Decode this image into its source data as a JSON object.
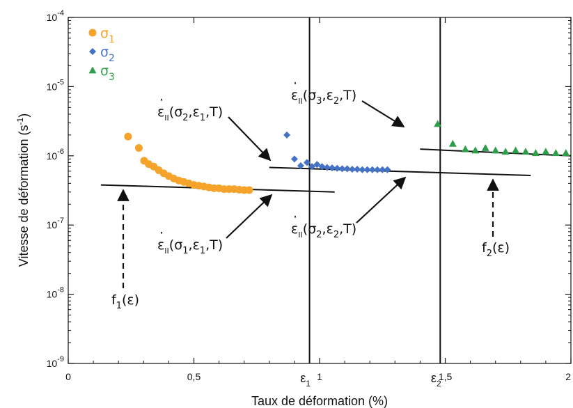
{
  "chart_data": {
    "type": "scatter",
    "xlabel": "Taux de déformation (%)",
    "ylabel": "Vitesse de déformation (s",
    "ylabel_sup": "-1",
    "ylabel_end": ")",
    "xlim": [
      0,
      2
    ],
    "ylim": [
      1e-09,
      0.0001
    ],
    "yscale": "log",
    "x_ticks": [
      {
        "value": 0,
        "label": "0"
      },
      {
        "value": 0.5,
        "label": "0,5"
      },
      {
        "value": 1,
        "label": "1"
      },
      {
        "value": 1.5,
        "label": "1,5"
      },
      {
        "value": 2,
        "label": "2"
      }
    ],
    "y_ticks": [
      {
        "value": 1e-09,
        "base": "10",
        "exp": "-9"
      },
      {
        "value": 1e-08,
        "base": "10",
        "exp": "-8"
      },
      {
        "value": 1e-07,
        "base": "10",
        "exp": "-7"
      },
      {
        "value": 1e-06,
        "base": "10",
        "exp": "-6"
      },
      {
        "value": 1e-05,
        "base": "10",
        "exp": "-5"
      },
      {
        "value": 0.0001,
        "base": "10",
        "exp": "-4"
      }
    ],
    "series": [
      {
        "name": "σ",
        "sub": "1",
        "color": "#f5a32a",
        "marker": "circle",
        "x": [
          0.238,
          0.281,
          0.302,
          0.32,
          0.34,
          0.36,
          0.38,
          0.4,
          0.42,
          0.44,
          0.46,
          0.48,
          0.5,
          0.52,
          0.54,
          0.56,
          0.58,
          0.6,
          0.62,
          0.64,
          0.66,
          0.68,
          0.7,
          0.72
        ],
        "y": [
          1.9e-06,
          1.3e-06,
          8.5e-07,
          7.6e-07,
          7e-07,
          6.2e-07,
          5.6e-07,
          5.1e-07,
          4.7e-07,
          4.4e-07,
          4.2e-07,
          4e-07,
          3.8e-07,
          3.7e-07,
          3.6e-07,
          3.5e-07,
          3.4e-07,
          3.4e-07,
          3.3e-07,
          3.3e-07,
          3.3e-07,
          3.25e-07,
          3.2e-07,
          3.2e-07
        ]
      },
      {
        "name": "σ",
        "sub": "2",
        "color": "#4472c4",
        "marker": "diamond",
        "x": [
          0.87,
          0.9,
          0.925,
          0.95,
          0.97,
          0.99,
          1.01,
          1.03,
          1.05,
          1.07,
          1.09,
          1.11,
          1.13,
          1.15,
          1.17,
          1.19,
          1.21,
          1.23,
          1.25,
          1.27
        ],
        "y": [
          2e-06,
          9e-07,
          7.2e-07,
          8e-07,
          7e-07,
          7.5e-07,
          7e-07,
          6.8e-07,
          6.7e-07,
          6.6e-07,
          6.5e-07,
          6.5e-07,
          6.4e-07,
          6.4e-07,
          6.3e-07,
          6.3e-07,
          6.3e-07,
          6.3e-07,
          6.3e-07,
          6.3e-07
        ]
      },
      {
        "name": "σ",
        "sub": "3",
        "color": "#2e9e4a",
        "marker": "triangle",
        "x": [
          1.47,
          1.53,
          1.58,
          1.62,
          1.66,
          1.7,
          1.74,
          1.78,
          1.82,
          1.86,
          1.9,
          1.94,
          1.98
        ],
        "y": [
          2.9e-06,
          1.5e-06,
          1.25e-06,
          1.2e-06,
          1.3e-06,
          1.2e-06,
          1.15e-06,
          1.2e-06,
          1.15e-06,
          1.1e-06,
          1.15e-06,
          1.1e-06,
          1.1e-06
        ]
      }
    ],
    "fit_lines": [
      {
        "name": "f1",
        "x": [
          0.13,
          1.06
        ],
        "y": [
          3.8e-07,
          3e-07
        ]
      },
      {
        "name": "f2",
        "x": [
          0.8,
          1.84
        ],
        "y": [
          6.8e-07,
          5.2e-07
        ]
      },
      {
        "name": "f3",
        "x": [
          1.4,
          2.0
        ],
        "y": [
          1.25e-06,
          1e-06
        ]
      }
    ],
    "vertical_lines": [
      {
        "name": "epsilon-1",
        "x": 0.96,
        "label": "ε",
        "sub": "1"
      },
      {
        "name": "epsilon-2",
        "x": 1.48,
        "label": "ε",
        "sub": "2"
      }
    ],
    "annotations": [
      {
        "name": "ann-s2-e1",
        "base": "ε",
        "dot": "·",
        "sub1": "II",
        "args": [
          "σ",
          "2",
          ",ε",
          "1",
          ",T)"
        ]
      },
      {
        "name": "ann-s1-e1",
        "base": "ε",
        "dot": "·",
        "sub1": "II",
        "args": [
          "σ",
          "1",
          ",ε",
          "1",
          ",T)"
        ]
      },
      {
        "name": "ann-s3-e2",
        "base": "ε",
        "dot": "·",
        "sub1": "II",
        "args": [
          "σ",
          "3",
          ",ε",
          "2",
          ",T)"
        ]
      },
      {
        "name": "ann-s2-e2",
        "base": "ε",
        "dot": "·",
        "sub1": "II",
        "args": [
          "σ",
          "2",
          ",ε",
          "2",
          ",T)"
        ]
      },
      {
        "name": "ann-f1",
        "base": "f",
        "sub": "1",
        "tail": "(ε)"
      },
      {
        "name": "ann-f2",
        "base": "f",
        "sub": "2",
        "tail": "(ε)"
      }
    ]
  }
}
